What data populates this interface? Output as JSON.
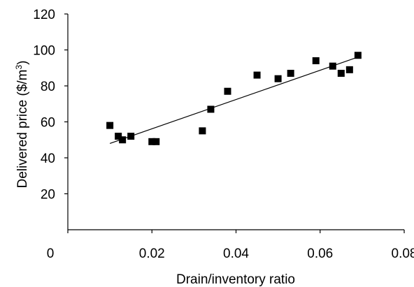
{
  "chart_data": {
    "type": "scatter",
    "title": "",
    "xlabel": "Drain/inventory ratio",
    "ylabel_main": "Delivered price ($/m",
    "ylabel_sup": "3",
    "ylabel_close": ")",
    "xlim": [
      0,
      0.08
    ],
    "ylim": [
      0,
      120
    ],
    "x_ticks": [
      0,
      0.02,
      0.04,
      0.06,
      0.08
    ],
    "x_tick_labels": [
      "0",
      "0.02",
      "0.04",
      "0.06",
      "0.08"
    ],
    "y_ticks": [
      20,
      40,
      60,
      80,
      100,
      120
    ],
    "y_tick_labels": [
      "20",
      "40",
      "60",
      "80",
      "100",
      "120"
    ],
    "grid": false,
    "legend": "none",
    "marker": "square",
    "marker_color": "#000000",
    "points": [
      {
        "x": 0.01,
        "y": 58
      },
      {
        "x": 0.012,
        "y": 52
      },
      {
        "x": 0.013,
        "y": 50
      },
      {
        "x": 0.015,
        "y": 52
      },
      {
        "x": 0.02,
        "y": 49
      },
      {
        "x": 0.021,
        "y": 49
      },
      {
        "x": 0.032,
        "y": 55
      },
      {
        "x": 0.034,
        "y": 67
      },
      {
        "x": 0.038,
        "y": 77
      },
      {
        "x": 0.045,
        "y": 86
      },
      {
        "x": 0.05,
        "y": 84
      },
      {
        "x": 0.053,
        "y": 87
      },
      {
        "x": 0.059,
        "y": 94
      },
      {
        "x": 0.063,
        "y": 91
      },
      {
        "x": 0.065,
        "y": 87
      },
      {
        "x": 0.067,
        "y": 89
      },
      {
        "x": 0.069,
        "y": 97
      }
    ],
    "trendline": {
      "x": [
        0.01,
        0.069
      ],
      "y": [
        48,
        96
      ]
    }
  }
}
